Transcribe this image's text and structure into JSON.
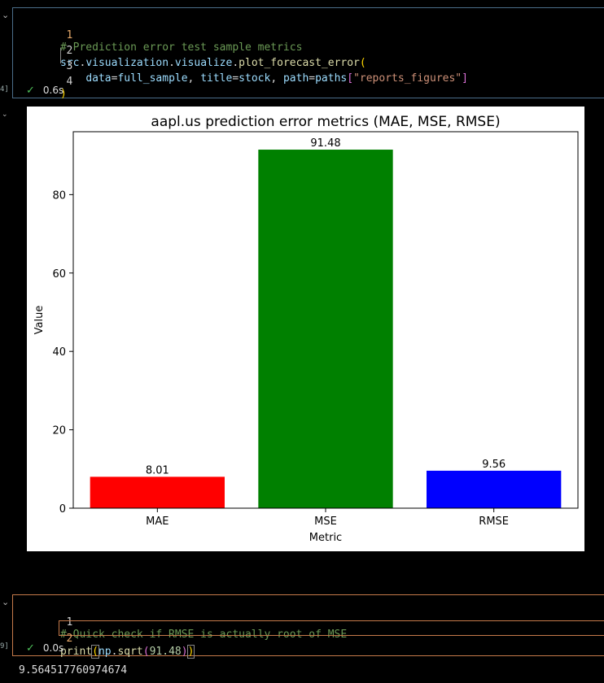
{
  "cell1": {
    "exec_count": "4]",
    "lines": [
      {
        "num": "1",
        "code": "# Prediction error test sample metrics"
      },
      {
        "num": "2",
        "code": "src.visualization.visualize.plot_forecast_error("
      },
      {
        "num": "3",
        "code": "    data=full_sample, title=stock, path=paths[\"reports_figures\"]"
      },
      {
        "num": "4",
        "code": ")"
      }
    ],
    "status_time": "0.6s"
  },
  "cell2": {
    "exec_count": "9]",
    "lines": [
      {
        "num": "1",
        "code": "# Quick check if RMSE is actually root of MSE"
      },
      {
        "num": "2",
        "code": "print(np.sqrt(91.48))"
      }
    ],
    "status_time": "0.0s",
    "output": "9.564517760974674"
  },
  "colors": {
    "mae": "#ff0000",
    "mse": "#008000",
    "rmse": "#0000ff",
    "cell_border_idle": "#4b6e8a",
    "cell_border_active": "#c67a4a"
  },
  "icons": {
    "collapse": "chevron-down-icon",
    "success": "check-icon"
  },
  "chart_data": {
    "type": "bar",
    "title": "aapl.us prediction error metrics (MAE, MSE, RMSE)",
    "xlabel": "Metric",
    "ylabel": "Value",
    "categories": [
      "MAE",
      "MSE",
      "RMSE"
    ],
    "values": [
      8.01,
      91.48,
      9.56
    ],
    "data_labels": [
      "8.01",
      "91.48",
      "9.56"
    ],
    "bar_colors": [
      "#ff0000",
      "#008000",
      "#0000ff"
    ],
    "ylim": [
      0,
      96.05
    ],
    "yticks": [
      0,
      20,
      40,
      60,
      80
    ],
    "grid": false,
    "legend": "none"
  }
}
